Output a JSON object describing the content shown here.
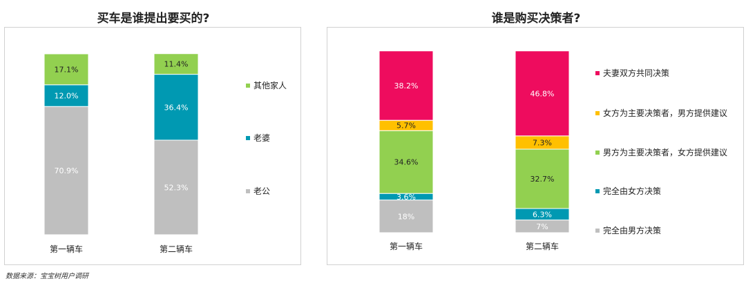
{
  "source_note": "数据来源：宝宝树用户调研",
  "colors": {
    "green": "#92d050",
    "teal": "#0099b2",
    "gray": "#bfbfbf",
    "pink": "#ee0c5e",
    "yellow": "#ffc000"
  },
  "chart_data": [
    {
      "type": "bar",
      "stacked": true,
      "title": "买车是谁提出要买的?",
      "categories": [
        "第一辆车",
        "第二辆车"
      ],
      "series": [
        {
          "name": "老公",
          "color": "#bfbfbf",
          "values": [
            70.9,
            52.3
          ],
          "labels": [
            "70.9%",
            "52.3%"
          ]
        },
        {
          "name": "老婆",
          "color": "#0099b2",
          "values": [
            12.0,
            36.4
          ],
          "labels": [
            "12.0%",
            "36.4%"
          ]
        },
        {
          "name": "其他家人",
          "color": "#92d050",
          "values": [
            17.1,
            11.4
          ],
          "labels": [
            "17.1%",
            "11.4%"
          ]
        }
      ],
      "legend_order": [
        "其他家人",
        "老婆",
        "老公"
      ],
      "legend_position": "right",
      "ylim": [
        0,
        100
      ],
      "grid": false
    },
    {
      "type": "bar",
      "stacked": true,
      "title": "谁是购买决策者?",
      "categories": [
        "第一辆车",
        "第二辆车"
      ],
      "series": [
        {
          "name": "完全由男方决策",
          "color": "#bfbfbf",
          "values": [
            18,
            7
          ],
          "labels": [
            "18%",
            "7%"
          ]
        },
        {
          "name": "完全由女方决策",
          "color": "#0099b2",
          "values": [
            3.6,
            6.3
          ],
          "labels": [
            "3.6%",
            "6.3%"
          ]
        },
        {
          "name": "男方为主要决策者，女方提供建议",
          "color": "#92d050",
          "values": [
            34.6,
            32.7
          ],
          "labels": [
            "34.6%",
            "32.7%"
          ]
        },
        {
          "name": "女方为主要决策者，男方提供建议",
          "color": "#ffc000",
          "values": [
            5.7,
            7.3
          ],
          "labels": [
            "5.7%",
            "7.3%"
          ]
        },
        {
          "name": "夫妻双方共同决策",
          "color": "#ee0c5e",
          "values": [
            38.2,
            46.8
          ],
          "labels": [
            "38.2%",
            "46.8%"
          ]
        }
      ],
      "legend_order": [
        "夫妻双方共同决策",
        "女方为主要决策者，男方提供建议",
        "男方为主要决策者，女方提供建议",
        "完全由女方决策",
        "完全由男方决策"
      ],
      "legend_position": "right",
      "ylim": [
        0,
        100
      ],
      "grid": false
    }
  ]
}
